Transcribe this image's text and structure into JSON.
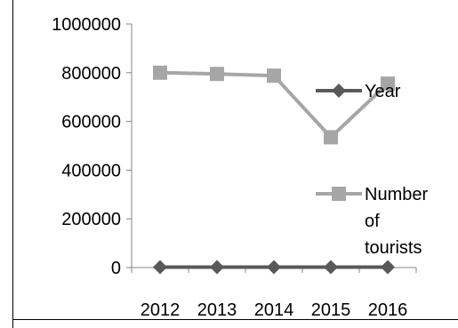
{
  "chart_data": {
    "type": "line",
    "categories": [
      "2012",
      "2013",
      "2014",
      "2015",
      "2016"
    ],
    "y_ticks": [
      "0",
      "200000",
      "400000",
      "600000",
      "800000",
      "1000000"
    ],
    "ylim": [
      0,
      1000000
    ],
    "grid": false,
    "legend_position": "right",
    "series": [
      {
        "name": "Year",
        "values": [
          2012,
          2013,
          2014,
          2015,
          2016
        ],
        "marker": "diamond",
        "color": "#595959"
      },
      {
        "name": "Number of tourists",
        "legend_lines": [
          "Number",
          "of",
          "tourists"
        ],
        "values": [
          800000,
          795000,
          788000,
          535000,
          755000
        ],
        "marker": "square",
        "color": "#a6a6a6"
      }
    ]
  }
}
